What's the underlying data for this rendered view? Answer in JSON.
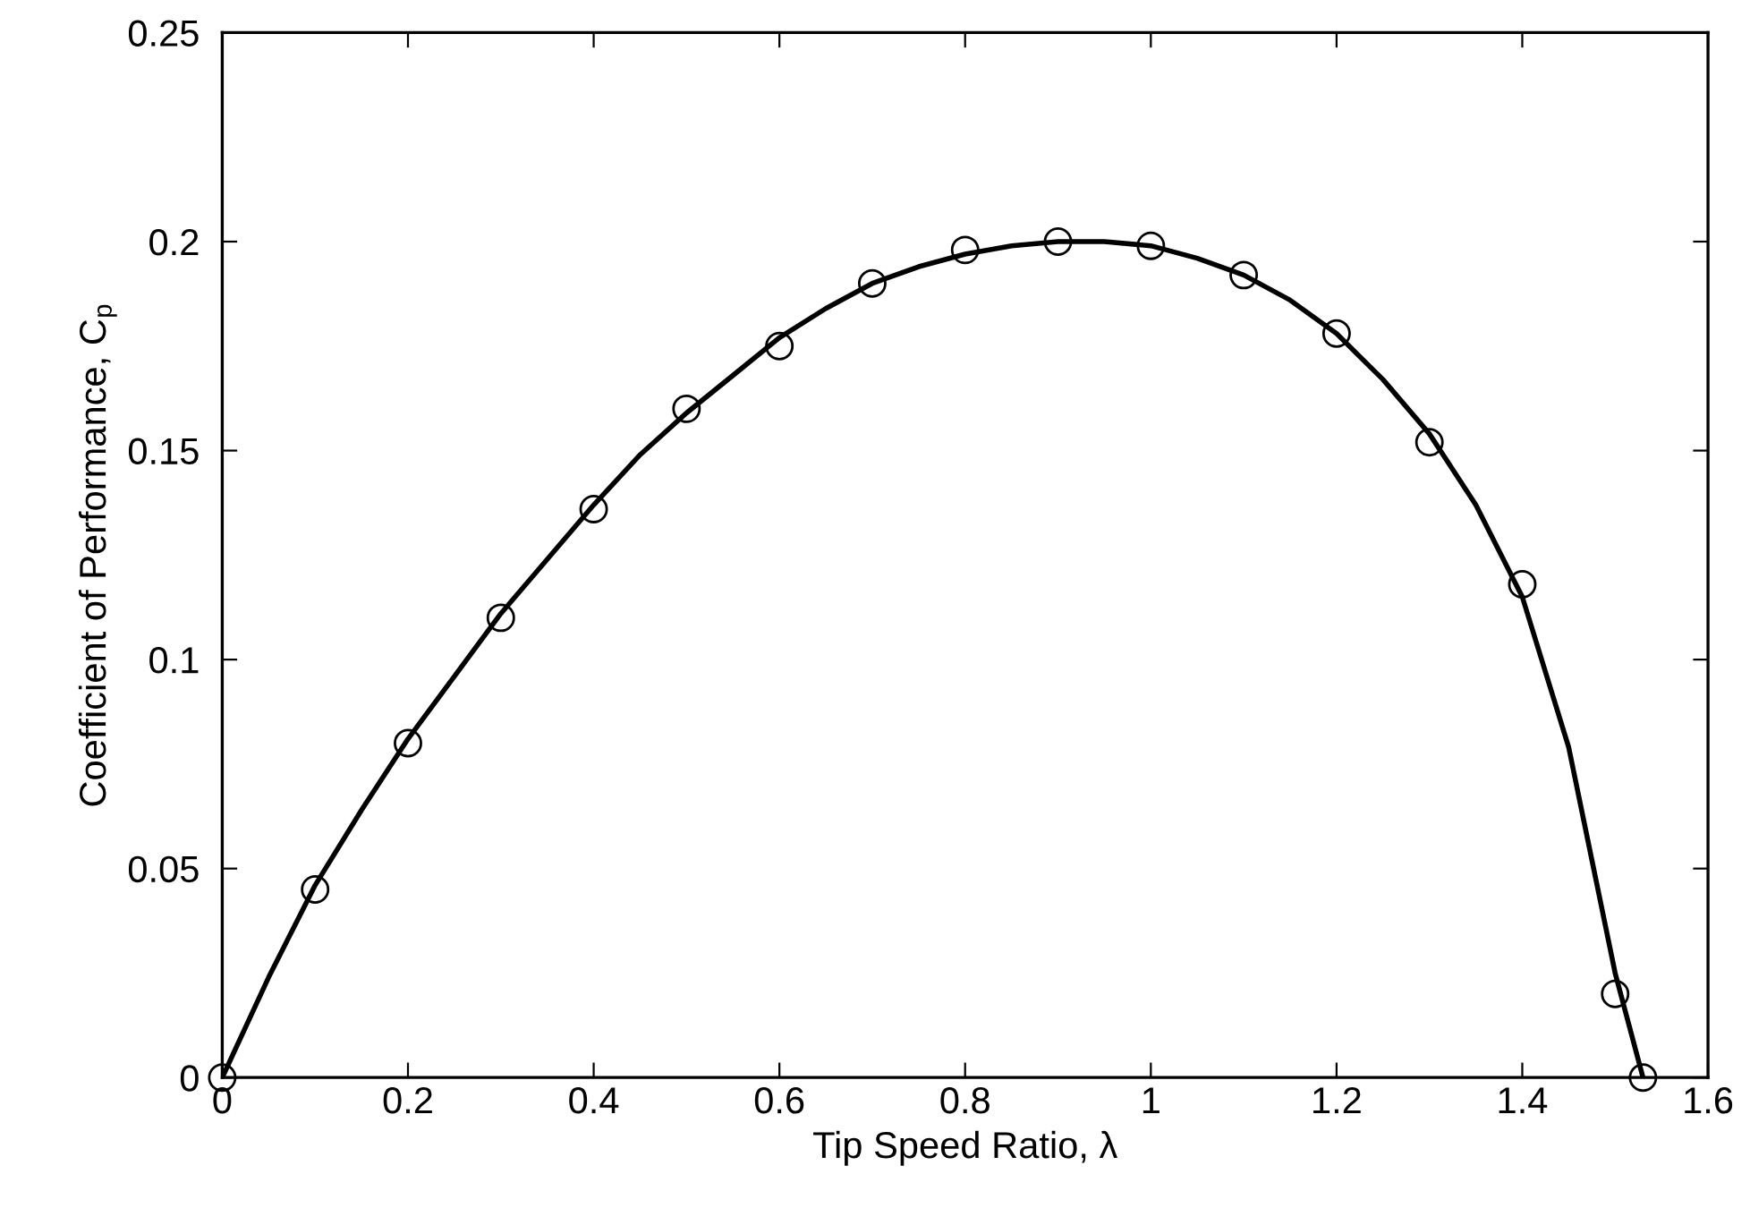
{
  "chart_data": {
    "type": "scatter",
    "xlabel": "Tip Speed Ratio, λ",
    "ylabel": "Coefficient of Performance, C$_{p}$",
    "xlim": [
      0,
      1.6
    ],
    "ylim": [
      0,
      0.25
    ],
    "xticks": [
      0,
      0.2,
      0.4,
      0.6,
      0.8,
      1,
      1.2,
      1.4,
      1.6
    ],
    "yticks": [
      0,
      0.05,
      0.1,
      0.15,
      0.2,
      0.25
    ],
    "grid": false,
    "legend": false,
    "series": [
      {
        "color": "#000000",
        "marker": "circle",
        "x": [
          0,
          0.1,
          0.2,
          0.3,
          0.4,
          0.5,
          0.6,
          0.7,
          0.8,
          0.9,
          1,
          1.1,
          1.2,
          1.3,
          1.4,
          1.5,
          1.53
        ],
        "values": [
          0,
          0.045,
          0.08,
          0.11,
          0.136,
          0.16,
          0.175,
          0.19,
          0.198,
          0.2,
          0.199,
          0.192,
          0.178,
          0.152,
          0.118,
          0.02,
          0
        ]
      },
      {
        "type": "line",
        "color": "#000000",
        "line_style": "solid",
        "x": [
          0,
          0.05,
          0.1,
          0.15,
          0.2,
          0.25,
          0.3,
          0.35,
          0.4,
          0.45,
          0.5,
          0.55,
          0.6,
          0.65,
          0.7,
          0.75,
          0.8,
          0.85,
          0.9,
          0.95,
          1,
          1.05,
          1.1,
          1.15,
          1.2,
          1.25,
          1.3,
          1.35,
          1.4,
          1.45,
          1.5,
          1.53
        ],
        "values": [
          0,
          0.024,
          0.046,
          0.064,
          0.081,
          0.096,
          0.111,
          0.124,
          0.137,
          0.149,
          0.159,
          0.168,
          0.177,
          0.184,
          0.19,
          0.194,
          0.197,
          0.199,
          0.2,
          0.2,
          0.199,
          0.196,
          0.192,
          0.186,
          0.178,
          0.167,
          0.154,
          0.137,
          0.115,
          0.079,
          0.025,
          0
        ]
      }
    ]
  }
}
